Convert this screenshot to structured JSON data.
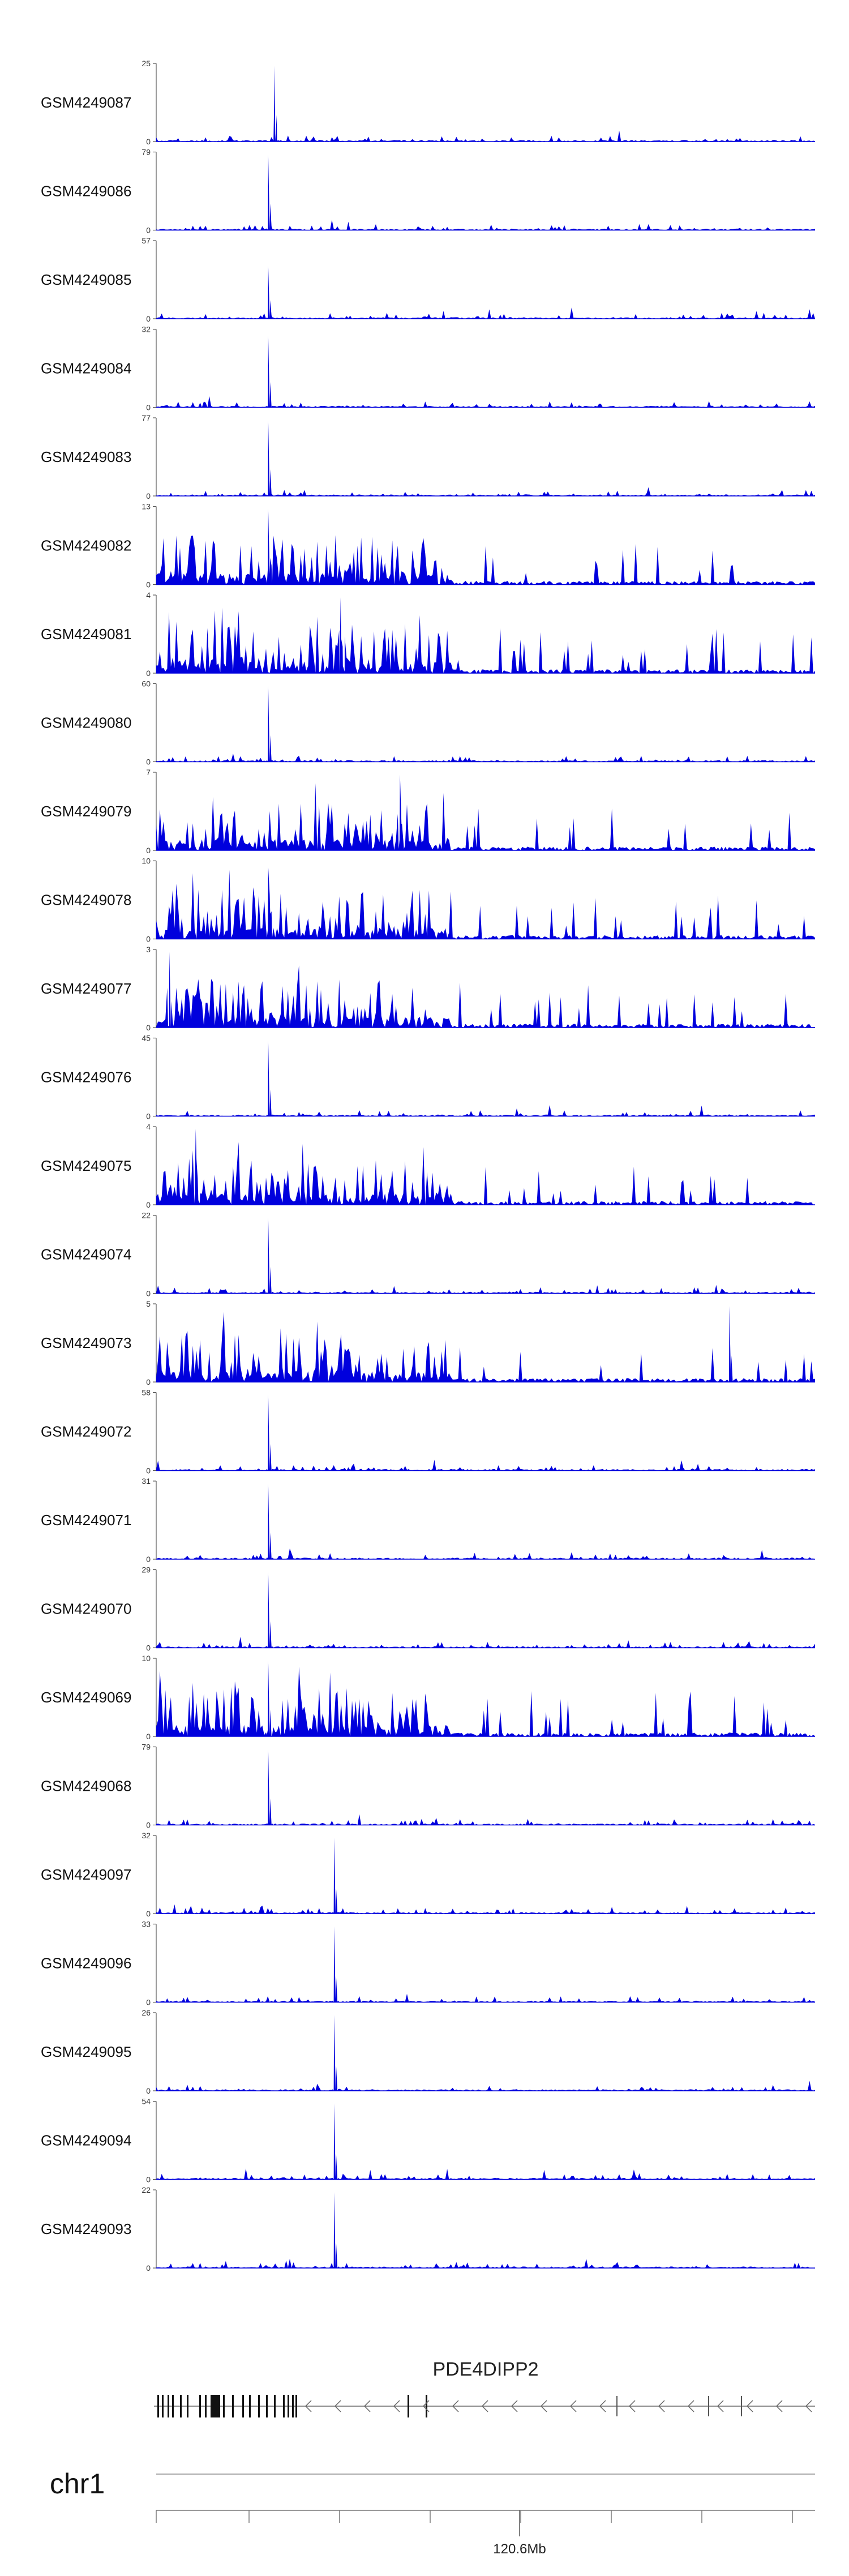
{
  "chart_data": {
    "type": "area",
    "chromosome": "chr1",
    "gene": "PDE4DIPP2",
    "axis_tick_label": "120.6Mb",
    "color": "#0000dd",
    "tracks": [
      {
        "name": "GSM4249087",
        "ymax": "25",
        "pattern": "p_a",
        "peak": 0.18,
        "peak_h": 1.0
      },
      {
        "name": "GSM4249086",
        "ymax": "79",
        "pattern": "p_b",
        "peak": 0.17,
        "peak_h": 1.0
      },
      {
        "name": "GSM4249085",
        "ymax": "57",
        "pattern": "p_c",
        "peak": 0.17,
        "peak_h": 0.7
      },
      {
        "name": "GSM4249084",
        "ymax": "32",
        "pattern": "p_d",
        "peak": 0.17,
        "peak_h": 0.95
      },
      {
        "name": "GSM4249083",
        "ymax": "77",
        "pattern": "p_e",
        "peak": 0.17,
        "peak_h": 1.0
      },
      {
        "name": "GSM4249082",
        "ymax": "13",
        "pattern": "p_f",
        "peak": 0.17,
        "peak_h": 1.0
      },
      {
        "name": "GSM4249081",
        "ymax": "4",
        "pattern": "p_g",
        "peak": 0.28,
        "peak_h": 1.0
      },
      {
        "name": "GSM4249080",
        "ymax": "60",
        "pattern": "p_h",
        "peak": 0.17,
        "peak_h": 1.0
      },
      {
        "name": "GSM4249079",
        "ymax": "7",
        "pattern": "p_i",
        "peak": 0.37,
        "peak_h": 1.0
      },
      {
        "name": "GSM4249078",
        "ymax": "10",
        "pattern": "p_j",
        "peak": 0.17,
        "peak_h": 0.95
      },
      {
        "name": "GSM4249077",
        "ymax": "3",
        "pattern": "p_k",
        "peak": 0.02,
        "peak_h": 1.0
      },
      {
        "name": "GSM4249076",
        "ymax": "45",
        "pattern": "p_l",
        "peak": 0.17,
        "peak_h": 1.0
      },
      {
        "name": "GSM4249075",
        "ymax": "4",
        "pattern": "p_m",
        "peak": 0.06,
        "peak_h": 1.0
      },
      {
        "name": "GSM4249074",
        "ymax": "22",
        "pattern": "p_n",
        "peak": 0.17,
        "peak_h": 1.0
      },
      {
        "name": "GSM4249073",
        "ymax": "5",
        "pattern": "p_o",
        "peak": 0.87,
        "peak_h": 1.0
      },
      {
        "name": "GSM4249072",
        "ymax": "58",
        "pattern": "p_p",
        "peak": 0.17,
        "peak_h": 1.0
      },
      {
        "name": "GSM4249071",
        "ymax": "31",
        "pattern": "p_q",
        "peak": 0.17,
        "peak_h": 1.0
      },
      {
        "name": "GSM4249070",
        "ymax": "29",
        "pattern": "p_r",
        "peak": 0.17,
        "peak_h": 1.0
      },
      {
        "name": "GSM4249069",
        "ymax": "10",
        "pattern": "p_s",
        "peak": 0.17,
        "peak_h": 1.0
      },
      {
        "name": "GSM4249068",
        "ymax": "79",
        "pattern": "p_t",
        "peak": 0.17,
        "peak_h": 1.0
      },
      {
        "name": "GSM4249097",
        "ymax": "32",
        "pattern": "p_u",
        "peak": 0.27,
        "peak_h": 1.0
      },
      {
        "name": "GSM4249096",
        "ymax": "33",
        "pattern": "p_v",
        "peak": 0.27,
        "peak_h": 1.0
      },
      {
        "name": "GSM4249095",
        "ymax": "26",
        "pattern": "p_w",
        "peak": 0.27,
        "peak_h": 1.0
      },
      {
        "name": "GSM4249094",
        "ymax": "54",
        "pattern": "p_x",
        "peak": 0.27,
        "peak_h": 1.0
      },
      {
        "name": "GSM4249093",
        "ymax": "22",
        "pattern": "p_y",
        "peak": 0.27,
        "peak_h": 1.0
      }
    ]
  }
}
